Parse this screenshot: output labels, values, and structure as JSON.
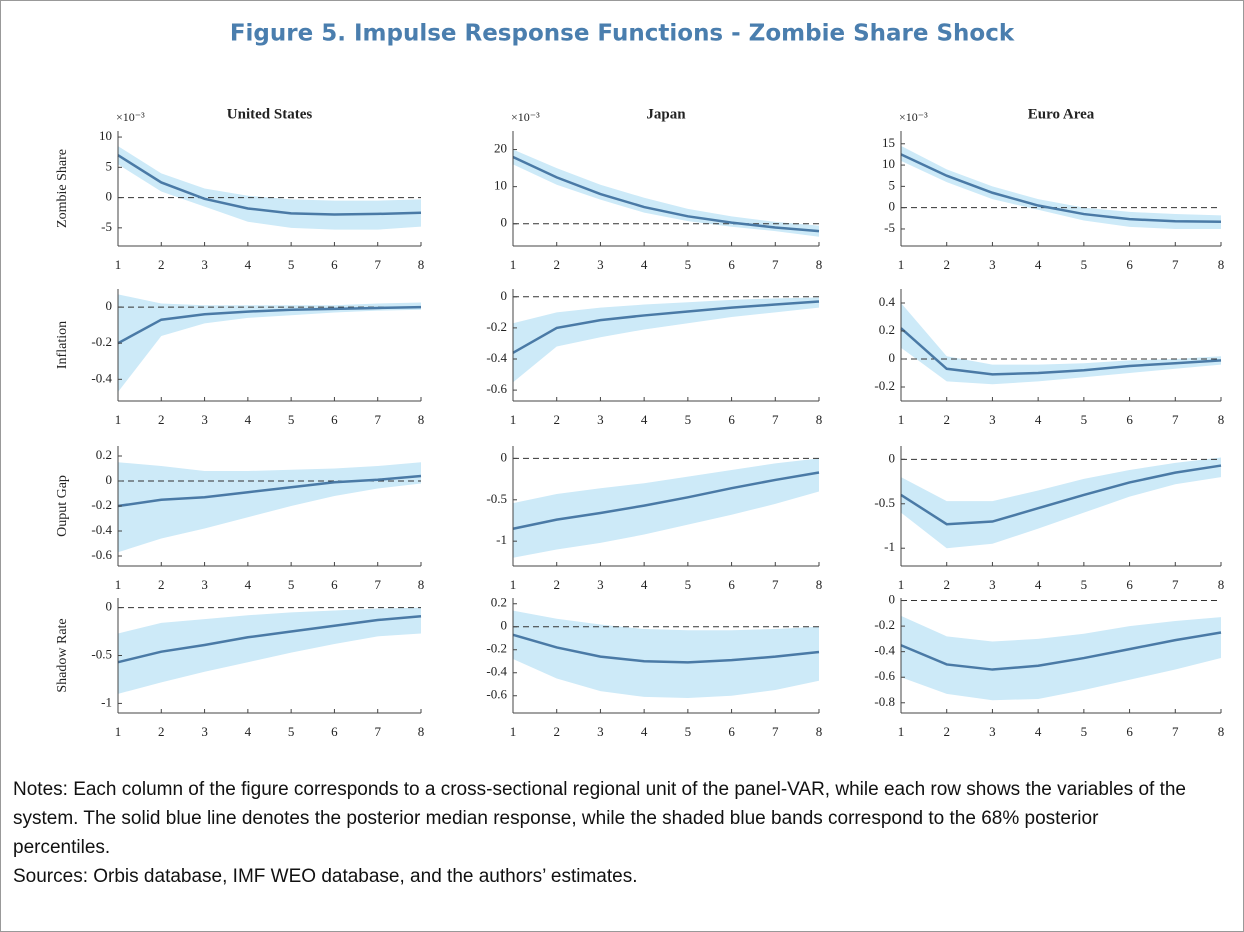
{
  "title": "Figure 5. Impulse Response Functions - Zombie Share Shock",
  "notes": "Notes: Each column of the figure corresponds to a cross-sectional regional unit of the panel-VAR, while each row shows the variables of the system. The solid blue line denotes the posterior median response, while the shaded blue bands correspond to the 68% posterior percentiles.",
  "sources": "Sources: Orbis database, IMF WEO database, and the authors’ estimates.",
  "chart_data": [
    {
      "type": "line",
      "title": "United States",
      "ylabel": "Zombie Share",
      "y_exponent_label": "×10⁻³",
      "color": "#4a7aa6",
      "band_color": "#cdeaf8",
      "reference_line": 0,
      "x": [
        1,
        2,
        3,
        4,
        5,
        6,
        7,
        8
      ],
      "xlim": [
        1,
        8
      ],
      "xticks": [
        1,
        2,
        3,
        4,
        5,
        6,
        7,
        8
      ],
      "ylim": [
        -8,
        11
      ],
      "yticks": [
        -5,
        0,
        5,
        10
      ],
      "values": [
        7,
        2.5,
        -0.2,
        -1.8,
        -2.6,
        -2.8,
        -2.7,
        -2.5
      ],
      "band_lower": [
        5.5,
        1,
        -1.5,
        -4,
        -5,
        -5.3,
        -5.3,
        -4.8
      ],
      "band_upper": [
        8.5,
        4,
        1.5,
        0.3,
        -0.3,
        -0.5,
        -0.5,
        -0.3
      ]
    },
    {
      "type": "line",
      "title": "Japan",
      "y_exponent_label": "×10⁻³",
      "color": "#4a7aa6",
      "band_color": "#cdeaf8",
      "reference_line": 0,
      "x": [
        1,
        2,
        3,
        4,
        5,
        6,
        7,
        8
      ],
      "xlim": [
        1,
        8
      ],
      "xticks": [
        1,
        2,
        3,
        4,
        5,
        6,
        7,
        8
      ],
      "ylim": [
        -6,
        25
      ],
      "yticks": [
        0,
        10,
        20
      ],
      "values": [
        18,
        12.5,
        8,
        4.5,
        2,
        0.3,
        -1,
        -2
      ],
      "band_lower": [
        16,
        10.5,
        6.5,
        3,
        0.7,
        -0.8,
        -2,
        -3.5
      ],
      "band_upper": [
        20,
        15,
        10.5,
        7,
        4,
        2,
        0.5,
        -0.5
      ]
    },
    {
      "type": "line",
      "title": "Euro Area",
      "y_exponent_label": "×10⁻³",
      "color": "#4a7aa6",
      "band_color": "#cdeaf8",
      "reference_line": 0,
      "x": [
        1,
        2,
        3,
        4,
        5,
        6,
        7,
        8
      ],
      "xlim": [
        1,
        8
      ],
      "xticks": [
        1,
        2,
        3,
        4,
        5,
        6,
        7,
        8
      ],
      "ylim": [
        -9,
        18
      ],
      "yticks": [
        -5,
        0,
        5,
        10,
        15
      ],
      "values": [
        12.5,
        7.5,
        3.5,
        0.5,
        -1.5,
        -2.7,
        -3.2,
        -3.3
      ],
      "band_lower": [
        11,
        6,
        2,
        -0.5,
        -3,
        -4.5,
        -5,
        -5
      ],
      "band_upper": [
        14.5,
        9,
        5,
        2,
        0,
        -1,
        -1.5,
        -1.8
      ]
    },
    {
      "type": "line",
      "ylabel": "Inflation",
      "color": "#4a7aa6",
      "band_color": "#cdeaf8",
      "reference_line": 0,
      "x": [
        1,
        2,
        3,
        4,
        5,
        6,
        7,
        8
      ],
      "xlim": [
        1,
        8
      ],
      "xticks": [
        1,
        2,
        3,
        4,
        5,
        6,
        7,
        8
      ],
      "ylim": [
        -0.52,
        0.1
      ],
      "yticks": [
        -0.4,
        -0.2,
        0
      ],
      "values": [
        -0.2,
        -0.07,
        -0.04,
        -0.025,
        -0.015,
        -0.01,
        -0.005,
        0
      ],
      "band_lower": [
        -0.47,
        -0.16,
        -0.09,
        -0.06,
        -0.045,
        -0.03,
        -0.02,
        -0.015
      ],
      "band_upper": [
        0.07,
        0.02,
        0.01,
        0.01,
        0.01,
        0.01,
        0.02,
        0.025
      ]
    },
    {
      "type": "line",
      "color": "#4a7aa6",
      "band_color": "#cdeaf8",
      "reference_line": 0,
      "x": [
        1,
        2,
        3,
        4,
        5,
        6,
        7,
        8
      ],
      "xlim": [
        1,
        8
      ],
      "xticks": [
        1,
        2,
        3,
        4,
        5,
        6,
        7,
        8
      ],
      "ylim": [
        -0.67,
        0.05
      ],
      "yticks": [
        -0.6,
        -0.4,
        -0.2,
        0
      ],
      "values": [
        -0.36,
        -0.2,
        -0.15,
        -0.12,
        -0.095,
        -0.07,
        -0.05,
        -0.03
      ],
      "band_lower": [
        -0.55,
        -0.32,
        -0.26,
        -0.21,
        -0.17,
        -0.13,
        -0.1,
        -0.07
      ],
      "band_upper": [
        -0.17,
        -0.1,
        -0.07,
        -0.05,
        -0.035,
        -0.02,
        -0.01,
        -0.005
      ]
    },
    {
      "type": "line",
      "color": "#4a7aa6",
      "band_color": "#cdeaf8",
      "reference_line": 0,
      "x": [
        1,
        2,
        3,
        4,
        5,
        6,
        7,
        8
      ],
      "xlim": [
        1,
        8
      ],
      "xticks": [
        1,
        2,
        3,
        4,
        5,
        6,
        7,
        8
      ],
      "ylim": [
        -0.3,
        0.5
      ],
      "yticks": [
        -0.2,
        0,
        0.2,
        0.4
      ],
      "values": [
        0.22,
        -0.07,
        -0.11,
        -0.1,
        -0.08,
        -0.05,
        -0.03,
        -0.01
      ],
      "band_lower": [
        0.08,
        -0.16,
        -0.18,
        -0.16,
        -0.13,
        -0.1,
        -0.07,
        -0.04
      ],
      "band_upper": [
        0.4,
        0.02,
        -0.04,
        -0.04,
        -0.03,
        -0.01,
        0,
        0.02
      ]
    },
    {
      "type": "line",
      "ylabel": "Ouput Gap",
      "color": "#4a7aa6",
      "band_color": "#cdeaf8",
      "reference_line": 0,
      "x": [
        1,
        2,
        3,
        4,
        5,
        6,
        7,
        8
      ],
      "xlim": [
        1,
        8
      ],
      "xticks": [
        1,
        2,
        3,
        4,
        5,
        6,
        7,
        8
      ],
      "ylim": [
        -0.68,
        0.28
      ],
      "yticks": [
        -0.6,
        -0.4,
        -0.2,
        0,
        0.2
      ],
      "values": [
        -0.2,
        -0.15,
        -0.13,
        -0.09,
        -0.05,
        -0.01,
        0.01,
        0.04
      ],
      "band_lower": [
        -0.57,
        -0.46,
        -0.38,
        -0.29,
        -0.2,
        -0.12,
        -0.06,
        -0.02
      ],
      "band_upper": [
        0.15,
        0.12,
        0.08,
        0.08,
        0.09,
        0.1,
        0.12,
        0.15
      ]
    },
    {
      "type": "line",
      "color": "#4a7aa6",
      "band_color": "#cdeaf8",
      "reference_line": 0,
      "x": [
        1,
        2,
        3,
        4,
        5,
        6,
        7,
        8
      ],
      "xlim": [
        1,
        8
      ],
      "xticks": [
        1,
        2,
        3,
        4,
        5,
        6,
        7,
        8
      ],
      "ylim": [
        -1.3,
        0.15
      ],
      "yticks": [
        -1,
        -0.5,
        0
      ],
      "values": [
        -0.85,
        -0.74,
        -0.66,
        -0.57,
        -0.47,
        -0.36,
        -0.26,
        -0.17
      ],
      "band_lower": [
        -1.2,
        -1.1,
        -1.02,
        -0.92,
        -0.8,
        -0.68,
        -0.55,
        -0.4
      ],
      "band_upper": [
        -0.54,
        -0.43,
        -0.36,
        -0.3,
        -0.22,
        -0.14,
        -0.06,
        0
      ]
    },
    {
      "type": "line",
      "color": "#4a7aa6",
      "band_color": "#cdeaf8",
      "reference_line": 0,
      "x": [
        1,
        2,
        3,
        4,
        5,
        6,
        7,
        8
      ],
      "xlim": [
        1,
        8
      ],
      "xticks": [
        1,
        2,
        3,
        4,
        5,
        6,
        7,
        8
      ],
      "ylim": [
        -1.2,
        0.15
      ],
      "yticks": [
        -1,
        -0.5,
        0
      ],
      "values": [
        -0.4,
        -0.73,
        -0.7,
        -0.55,
        -0.4,
        -0.26,
        -0.15,
        -0.07
      ],
      "band_lower": [
        -0.6,
        -1,
        -0.95,
        -0.78,
        -0.6,
        -0.42,
        -0.28,
        -0.2
      ],
      "band_upper": [
        -0.2,
        -0.47,
        -0.47,
        -0.35,
        -0.22,
        -0.12,
        -0.04,
        0.02
      ]
    },
    {
      "type": "line",
      "ylabel": "Shadow Rate",
      "color": "#4a7aa6",
      "band_color": "#cdeaf8",
      "reference_line": 0,
      "x": [
        1,
        2,
        3,
        4,
        5,
        6,
        7,
        8
      ],
      "xlim": [
        1,
        8
      ],
      "xticks": [
        1,
        2,
        3,
        4,
        5,
        6,
        7,
        8
      ],
      "ylim": [
        -1.1,
        0.1
      ],
      "yticks": [
        -1,
        -0.5,
        0
      ],
      "values": [
        -0.57,
        -0.46,
        -0.39,
        -0.31,
        -0.25,
        -0.19,
        -0.13,
        -0.09
      ],
      "band_lower": [
        -0.9,
        -0.78,
        -0.67,
        -0.57,
        -0.47,
        -0.38,
        -0.3,
        -0.27
      ],
      "band_upper": [
        -0.27,
        -0.16,
        -0.12,
        -0.08,
        -0.05,
        -0.03,
        -0.01,
        0
      ]
    },
    {
      "type": "line",
      "color": "#4a7aa6",
      "band_color": "#cdeaf8",
      "reference_line": 0,
      "x": [
        1,
        2,
        3,
        4,
        5,
        6,
        7,
        8
      ],
      "xlim": [
        1,
        8
      ],
      "xticks": [
        1,
        2,
        3,
        4,
        5,
        6,
        7,
        8
      ],
      "ylim": [
        -0.75,
        0.25
      ],
      "yticks": [
        -0.6,
        -0.4,
        -0.2,
        0,
        0.2
      ],
      "values": [
        -0.07,
        -0.18,
        -0.26,
        -0.3,
        -0.31,
        -0.29,
        -0.26,
        -0.22
      ],
      "band_lower": [
        -0.28,
        -0.45,
        -0.56,
        -0.61,
        -0.62,
        -0.6,
        -0.55,
        -0.47
      ],
      "band_upper": [
        0.14,
        0.07,
        0.02,
        -0.02,
        -0.03,
        -0.03,
        -0.02,
        0
      ]
    },
    {
      "type": "line",
      "color": "#4a7aa6",
      "band_color": "#cdeaf8",
      "reference_line": 0,
      "x": [
        1,
        2,
        3,
        4,
        5,
        6,
        7,
        8
      ],
      "xlim": [
        1,
        8
      ],
      "xticks": [
        1,
        2,
        3,
        4,
        5,
        6,
        7,
        8
      ],
      "ylim": [
        -0.88,
        0.02
      ],
      "yticks": [
        -0.8,
        -0.6,
        -0.4,
        -0.2,
        0
      ],
      "values": [
        -0.35,
        -0.5,
        -0.54,
        -0.51,
        -0.45,
        -0.38,
        -0.31,
        -0.25
      ],
      "band_lower": [
        -0.6,
        -0.73,
        -0.78,
        -0.77,
        -0.7,
        -0.62,
        -0.54,
        -0.45
      ],
      "band_upper": [
        -0.12,
        -0.28,
        -0.32,
        -0.3,
        -0.26,
        -0.2,
        -0.16,
        -0.13
      ]
    }
  ]
}
